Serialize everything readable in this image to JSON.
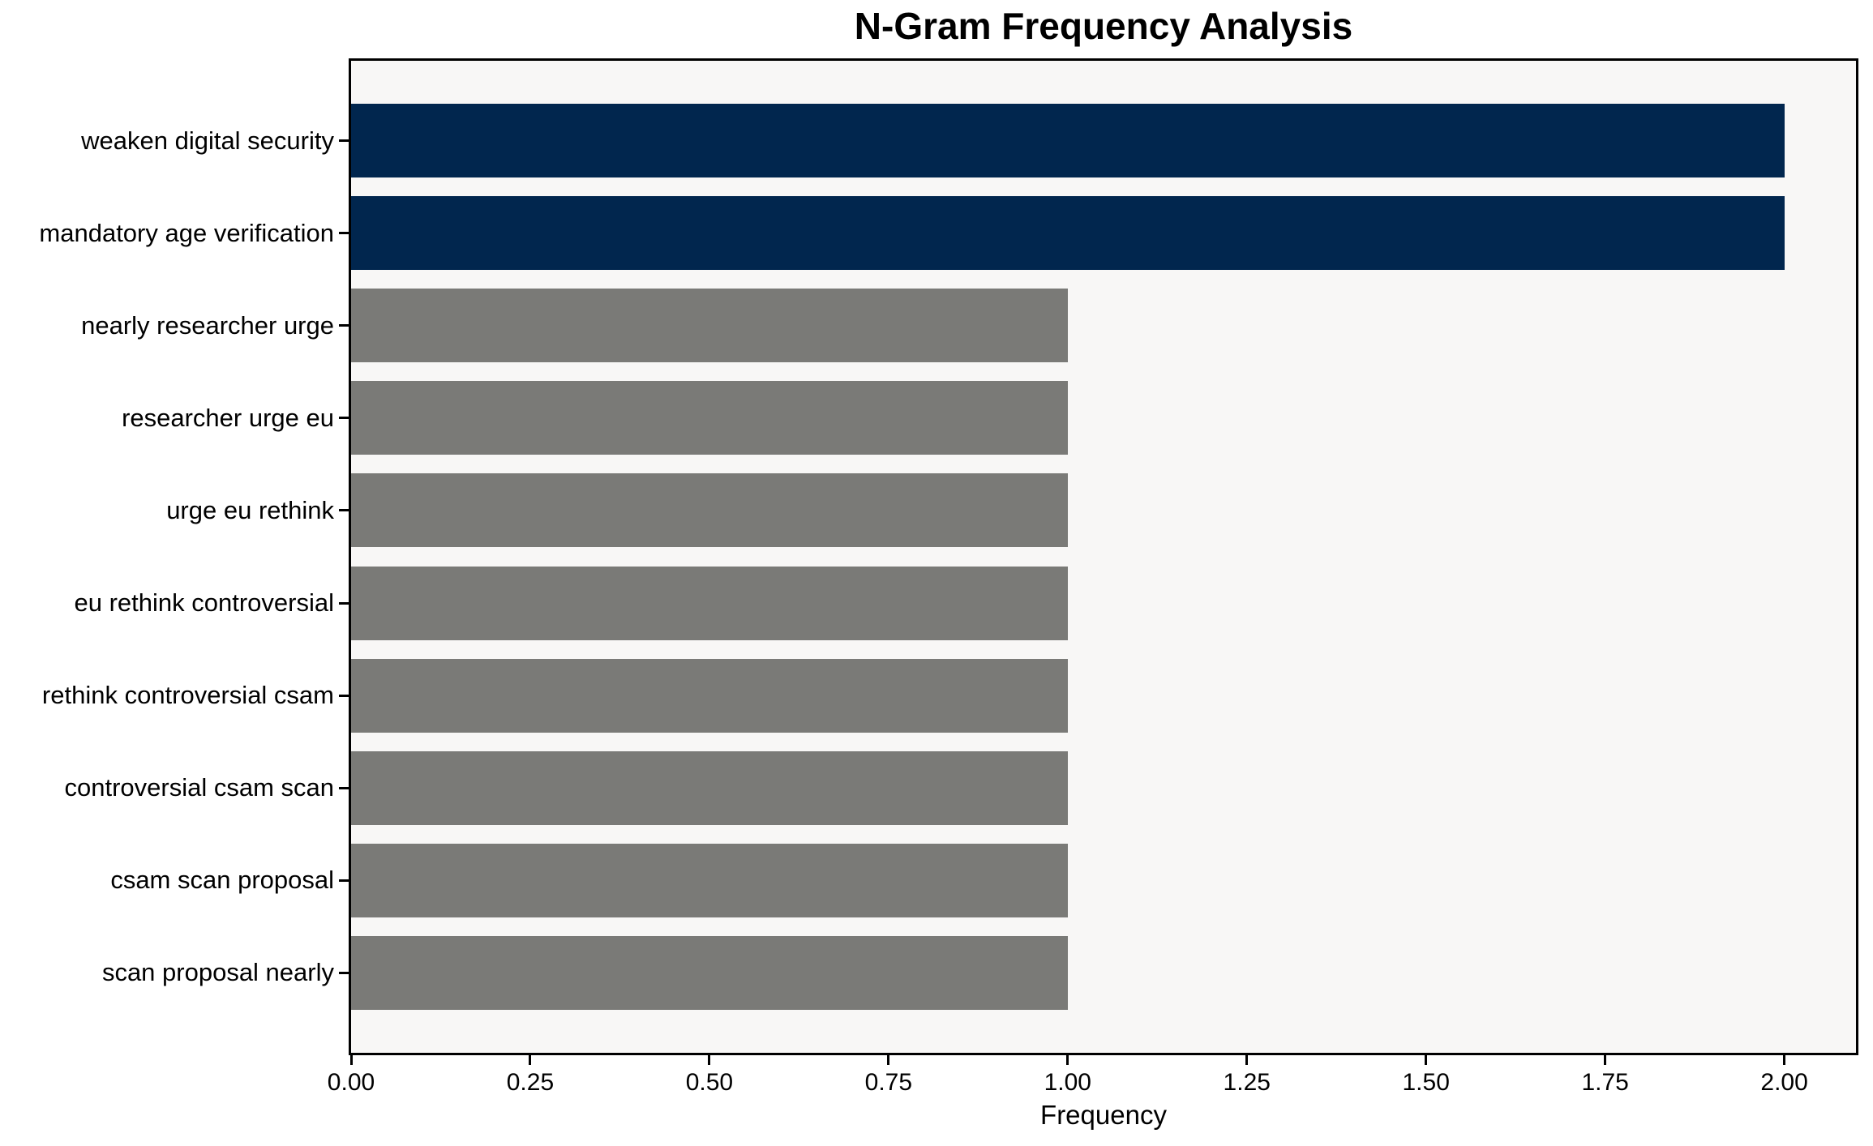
{
  "chart_data": {
    "type": "bar",
    "orientation": "horizontal",
    "title": "N-Gram Frequency Analysis",
    "xlabel": "Frequency",
    "ylabel": "",
    "categories": [
      "weaken digital security",
      "mandatory age verification",
      "nearly researcher urge",
      "researcher urge eu",
      "urge eu rethink",
      "eu rethink controversial",
      "rethink controversial csam",
      "controversial csam scan",
      "csam scan proposal",
      "scan proposal nearly"
    ],
    "values": [
      2,
      2,
      1,
      1,
      1,
      1,
      1,
      1,
      1,
      1
    ],
    "bar_colors": [
      "#01264e",
      "#01264e",
      "#7a7a77",
      "#7a7a77",
      "#7a7a77",
      "#7a7a77",
      "#7a7a77",
      "#7a7a77",
      "#7a7a77",
      "#7a7a77"
    ],
    "highlight_color": "#01264e",
    "default_color": "#7a7a77",
    "xlim": [
      0,
      2.1
    ],
    "xtick_values": [
      0,
      0.25,
      0.5,
      0.75,
      1.0,
      1.25,
      1.5,
      1.75,
      2.0
    ],
    "xtick_labels": [
      "0.00",
      "0.25",
      "0.50",
      "0.75",
      "1.00",
      "1.25",
      "1.50",
      "1.75",
      "2.00"
    ],
    "grid": false,
    "legend": null,
    "plot_background": "#f8f7f6",
    "spine_color": "#000000",
    "bar_height_fraction": 0.8
  }
}
